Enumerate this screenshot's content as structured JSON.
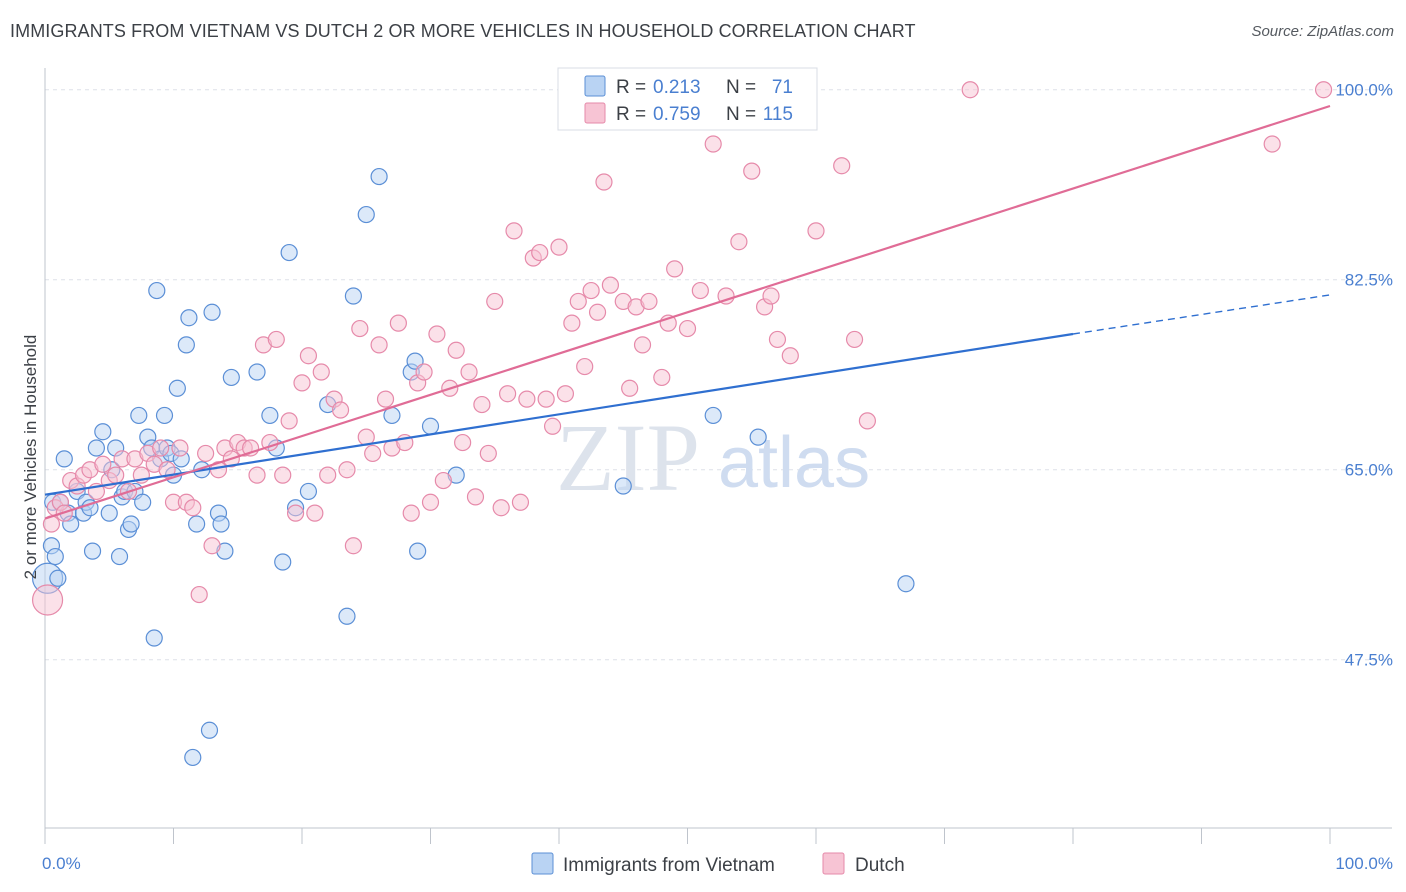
{
  "title": "IMMIGRANTS FROM VIETNAM VS DUTCH 2 OR MORE VEHICLES IN HOUSEHOLD CORRELATION CHART",
  "source": "Source: ZipAtlas.com",
  "watermark": {
    "zip": "ZIP",
    "atlas": "atlas"
  },
  "colors": {
    "vietnam_fill": "#b9d3f3",
    "vietnam_stroke": "#5b8fd6",
    "vietnam_line": "#2f6fd0",
    "dutch_fill": "#f7c4d4",
    "dutch_stroke": "#e68aaa",
    "dutch_line": "#e06c96",
    "tick_text": "#4a7fd0",
    "grid": "#dde1e8"
  },
  "legend": {
    "rows": [
      {
        "r_label": "R =",
        "r_value": "0.213",
        "n_label": "N =",
        "n_value": "71"
      },
      {
        "r_label": "R =",
        "r_value": "0.759",
        "n_label": "N =",
        "n_value": "115"
      }
    ]
  },
  "bottom_legend": [
    "Immigrants from Vietnam",
    "Dutch"
  ],
  "chart_data": {
    "type": "scatter",
    "title": "IMMIGRANTS FROM VIETNAM VS DUTCH 2 OR MORE VEHICLES IN HOUSEHOLD CORRELATION CHART",
    "xlabel": "",
    "ylabel": "2 or more Vehicles in Household",
    "xlim": [
      0,
      100
    ],
    "ylim": [
      32,
      102
    ],
    "x_tick_labels": [
      "0.0%",
      "100.0%"
    ],
    "y_ticks": [
      47.5,
      65.0,
      82.5,
      100.0
    ],
    "y_tick_labels": [
      "47.5%",
      "65.0%",
      "82.5%",
      "100.0%"
    ],
    "grid": true,
    "legend_position": "top-center",
    "series": [
      {
        "name": "Immigrants from Vietnam",
        "R": 0.213,
        "N": 71,
        "trend": {
          "x0": 0,
          "y0": 62.7,
          "x1": 80,
          "y1": 77.5,
          "dashed_to_x": 100,
          "dashed_to_y": 81.1
        },
        "points": [
          [
            0.2,
            55.0
          ],
          [
            0.5,
            58.0
          ],
          [
            0.6,
            62.0
          ],
          [
            0.8,
            57.0
          ],
          [
            1.0,
            55.0
          ],
          [
            1.2,
            62.0
          ],
          [
            1.5,
            66.0
          ],
          [
            1.8,
            61.0
          ],
          [
            2.0,
            60.0
          ],
          [
            2.5,
            63.0
          ],
          [
            3.0,
            61.0
          ],
          [
            3.2,
            62.0
          ],
          [
            3.5,
            61.5
          ],
          [
            3.7,
            57.5
          ],
          [
            4.0,
            67.0
          ],
          [
            4.5,
            68.5
          ],
          [
            5.0,
            61.0
          ],
          [
            5.2,
            65.0
          ],
          [
            5.5,
            67.0
          ],
          [
            5.8,
            57.0
          ],
          [
            6.0,
            62.5
          ],
          [
            6.2,
            63.0
          ],
          [
            6.5,
            59.5
          ],
          [
            6.7,
            60.0
          ],
          [
            7.0,
            63.0
          ],
          [
            7.3,
            70.0
          ],
          [
            7.6,
            62.0
          ],
          [
            8.0,
            68.0
          ],
          [
            8.3,
            67.0
          ],
          [
            8.5,
            49.5
          ],
          [
            8.7,
            81.5
          ],
          [
            9.0,
            66.0
          ],
          [
            9.3,
            70.0
          ],
          [
            9.5,
            67.0
          ],
          [
            9.8,
            66.5
          ],
          [
            10.0,
            64.5
          ],
          [
            10.3,
            72.5
          ],
          [
            10.6,
            66.0
          ],
          [
            11.0,
            76.5
          ],
          [
            11.2,
            79.0
          ],
          [
            11.5,
            38.5
          ],
          [
            11.8,
            60.0
          ],
          [
            12.2,
            65.0
          ],
          [
            12.8,
            41.0
          ],
          [
            13.0,
            79.5
          ],
          [
            13.5,
            61.0
          ],
          [
            13.7,
            60.0
          ],
          [
            14.0,
            57.5
          ],
          [
            14.5,
            73.5
          ],
          [
            16.5,
            74.0
          ],
          [
            17.5,
            70.0
          ],
          [
            18.0,
            67.0
          ],
          [
            18.5,
            56.5
          ],
          [
            19.0,
            85.0
          ],
          [
            19.5,
            61.5
          ],
          [
            20.5,
            63.0
          ],
          [
            22.0,
            71.0
          ],
          [
            23.5,
            51.5
          ],
          [
            24.0,
            81.0
          ],
          [
            25.0,
            88.5
          ],
          [
            26.0,
            92.0
          ],
          [
            27.0,
            70.0
          ],
          [
            28.5,
            74.0
          ],
          [
            28.8,
            75.0
          ],
          [
            29.0,
            57.5
          ],
          [
            30.0,
            69.0
          ],
          [
            32.0,
            64.5
          ],
          [
            45.0,
            63.5
          ],
          [
            52.0,
            70.0
          ],
          [
            55.5,
            68.0
          ],
          [
            67.0,
            54.5
          ]
        ]
      },
      {
        "name": "Dutch",
        "R": 0.759,
        "N": 115,
        "trend": {
          "x0": 0,
          "y0": 60.5,
          "x1": 100,
          "y1": 98.5
        },
        "points": [
          [
            0.2,
            53.0
          ],
          [
            0.5,
            60.0
          ],
          [
            0.8,
            61.5
          ],
          [
            1.2,
            62.0
          ],
          [
            1.5,
            61.0
          ],
          [
            2.0,
            64.0
          ],
          [
            2.5,
            63.5
          ],
          [
            3.0,
            64.5
          ],
          [
            3.5,
            65.0
          ],
          [
            4.0,
            63.0
          ],
          [
            4.5,
            65.5
          ],
          [
            5.0,
            64.0
          ],
          [
            5.5,
            64.5
          ],
          [
            6.0,
            66.0
          ],
          [
            6.5,
            63.0
          ],
          [
            7.0,
            66.0
          ],
          [
            7.5,
            64.5
          ],
          [
            8.0,
            66.5
          ],
          [
            8.5,
            65.5
          ],
          [
            9.0,
            67.0
          ],
          [
            9.5,
            65.0
          ],
          [
            10.0,
            62.0
          ],
          [
            10.5,
            67.0
          ],
          [
            11.0,
            62.0
          ],
          [
            11.5,
            61.5
          ],
          [
            12.0,
            53.5
          ],
          [
            12.5,
            66.5
          ],
          [
            13.0,
            58.0
          ],
          [
            13.5,
            65.0
          ],
          [
            14.0,
            67.0
          ],
          [
            14.5,
            66.0
          ],
          [
            15.0,
            67.5
          ],
          [
            15.5,
            67.0
          ],
          [
            16.0,
            67.0
          ],
          [
            16.5,
            64.5
          ],
          [
            17.0,
            76.5
          ],
          [
            17.5,
            67.5
          ],
          [
            18.0,
            77.0
          ],
          [
            18.5,
            64.5
          ],
          [
            19.0,
            69.5
          ],
          [
            19.5,
            61.0
          ],
          [
            20.0,
            73.0
          ],
          [
            20.5,
            75.5
          ],
          [
            21.0,
            61.0
          ],
          [
            21.5,
            74.0
          ],
          [
            22.0,
            64.5
          ],
          [
            22.5,
            71.5
          ],
          [
            23.0,
            70.5
          ],
          [
            23.5,
            65.0
          ],
          [
            24.0,
            58.0
          ],
          [
            24.5,
            78.0
          ],
          [
            25.0,
            68.0
          ],
          [
            25.5,
            66.5
          ],
          [
            26.0,
            76.5
          ],
          [
            26.5,
            71.5
          ],
          [
            27.0,
            67.0
          ],
          [
            27.5,
            78.5
          ],
          [
            28.0,
            67.5
          ],
          [
            28.5,
            61.0
          ],
          [
            29.0,
            73.0
          ],
          [
            29.5,
            74.0
          ],
          [
            30.0,
            62.0
          ],
          [
            30.5,
            77.5
          ],
          [
            31.0,
            64.0
          ],
          [
            31.5,
            72.5
          ],
          [
            32.0,
            76.0
          ],
          [
            32.5,
            67.5
          ],
          [
            33.0,
            74.0
          ],
          [
            33.5,
            62.5
          ],
          [
            34.0,
            71.0
          ],
          [
            34.5,
            66.5
          ],
          [
            35.0,
            80.5
          ],
          [
            35.5,
            61.5
          ],
          [
            36.0,
            72.0
          ],
          [
            36.5,
            87.0
          ],
          [
            37.0,
            62.0
          ],
          [
            37.5,
            71.5
          ],
          [
            38.0,
            84.5
          ],
          [
            38.5,
            85.0
          ],
          [
            39.0,
            71.5
          ],
          [
            39.5,
            69.0
          ],
          [
            40.0,
            85.5
          ],
          [
            40.5,
            72.0
          ],
          [
            41.0,
            78.5
          ],
          [
            41.5,
            80.5
          ],
          [
            42.0,
            74.5
          ],
          [
            42.5,
            81.5
          ],
          [
            43.0,
            79.5
          ],
          [
            43.5,
            91.5
          ],
          [
            44.0,
            82.0
          ],
          [
            45.0,
            80.5
          ],
          [
            45.5,
            72.5
          ],
          [
            46.0,
            80.0
          ],
          [
            46.5,
            76.5
          ],
          [
            47.0,
            80.5
          ],
          [
            48.0,
            73.5
          ],
          [
            48.5,
            78.5
          ],
          [
            49.0,
            83.5
          ],
          [
            50.0,
            78.0
          ],
          [
            51.0,
            81.5
          ],
          [
            52.0,
            95.0
          ],
          [
            53.0,
            81.0
          ],
          [
            54.0,
            86.0
          ],
          [
            55.0,
            92.5
          ],
          [
            56.0,
            80.0
          ],
          [
            56.5,
            81.0
          ],
          [
            57.0,
            77.0
          ],
          [
            58.0,
            75.5
          ],
          [
            60.0,
            87.0
          ],
          [
            62.0,
            93.0
          ],
          [
            63.0,
            77.0
          ],
          [
            64.0,
            69.5
          ],
          [
            72.0,
            100.0
          ],
          [
            95.5,
            95.0
          ],
          [
            99.5,
            100.0
          ]
        ]
      }
    ]
  }
}
